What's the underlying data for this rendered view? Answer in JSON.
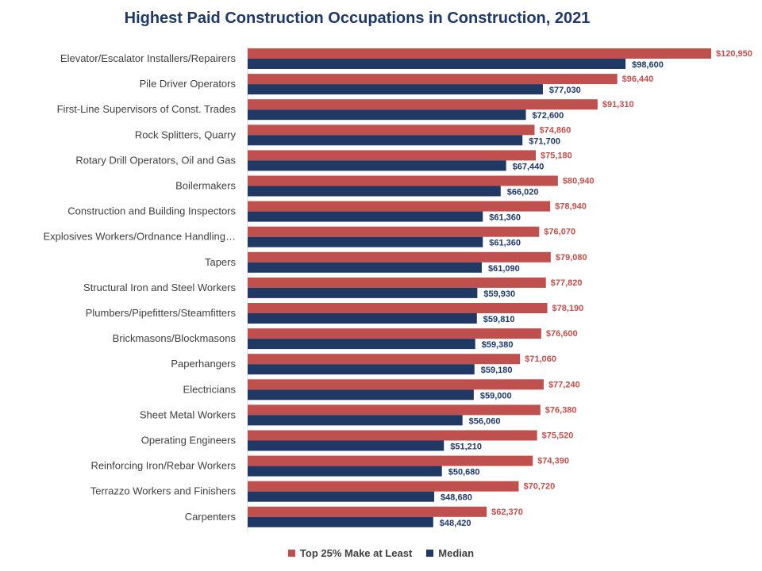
{
  "chart_data": {
    "type": "bar",
    "orientation": "horizontal",
    "title": "Highest Paid Construction Occupations in Construction, 2021",
    "categories": [
      "Elevator/Escalator Installers/Repairers",
      "Pile Driver Operators",
      "First-Line Supervisors of Const. Trades",
      "Rock Splitters, Quarry",
      "Rotary Drill Operators, Oil and Gas",
      "Boilermakers",
      "Construction and Building Inspectors",
      "Explosives Workers/Ordnance Handling…",
      "Tapers",
      "Structural Iron and Steel Workers",
      "Plumbers/Pipefitters/Steamfitters",
      "Brickmasons/Blockmasons",
      "Paperhangers",
      "Electricians",
      "Sheet Metal Workers",
      "Operating Engineers",
      "Reinforcing Iron/Rebar Workers",
      "Terrazzo Workers and Finishers",
      "Carpenters"
    ],
    "series": [
      {
        "name": "Top 25% Make at Least",
        "color": "#c0504d",
        "values": [
          120950,
          96440,
          91310,
          74860,
          75180,
          80940,
          78940,
          76070,
          79080,
          77820,
          78190,
          76600,
          71060,
          77240,
          76380,
          75520,
          74390,
          70720,
          62370
        ],
        "labels": [
          "$120,950",
          "$96,440",
          "$91,310",
          "$74,860",
          "$75,180",
          "$80,940",
          "$78,940",
          "$76,070",
          "$79,080",
          "$77,820",
          "$78,190",
          "$76,600",
          "$71,060",
          "$77,240",
          "$76,380",
          "$75,520",
          "$74,390",
          "$70,720",
          "$62,370"
        ]
      },
      {
        "name": "Median",
        "color": "#1f3864",
        "values": [
          98600,
          77030,
          72600,
          71700,
          67440,
          66020,
          61360,
          61360,
          61090,
          59930,
          59810,
          59380,
          59180,
          59000,
          56060,
          51210,
          50680,
          48680,
          48420
        ],
        "labels": [
          "$98,600",
          "$77,030",
          "$72,600",
          "$71,700",
          "$67,440",
          "$66,020",
          "$61,360",
          "$61,360",
          "$61,090",
          "$59,930",
          "$59,810",
          "$59,380",
          "$59,180",
          "$59,000",
          "$56,060",
          "$51,210",
          "$50,680",
          "$48,680",
          "$48,420"
        ]
      }
    ],
    "xlim": [
      0,
      120950
    ],
    "grid": false,
    "legend_position": "bottom"
  }
}
